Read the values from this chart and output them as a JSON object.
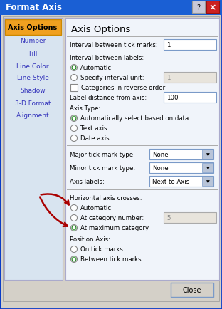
{
  "title": "Format Axis",
  "title_bg": "#1a5fd4",
  "title_text_color": "#ffffff",
  "sidebar_items": [
    "Axis Options",
    "Number",
    "Fill",
    "Line Color",
    "Line Style",
    "Shadow",
    "3-D Format",
    "Alignment"
  ],
  "sidebar_active": "Axis Options",
  "sidebar_active_bg": "#f0a020",
  "sidebar_active_ec": "#cc8800",
  "sidebar_bg": "#d8e4f0",
  "dialog_bg": "#d4d0c8",
  "content_bg": "#f0f4fa",
  "section_title": "Axis Options",
  "close_button": "Close",
  "input_bg_enabled": "#ffffff",
  "input_bg_disabled": "#e8e4dc",
  "dropdown_btn_bg": "#b8c4d8",
  "radio_dot_color": "#228b22",
  "arrow_color": "#aa0000",
  "fs_label": 6.2,
  "fs_title": 8.5,
  "fs_section": 9.5
}
